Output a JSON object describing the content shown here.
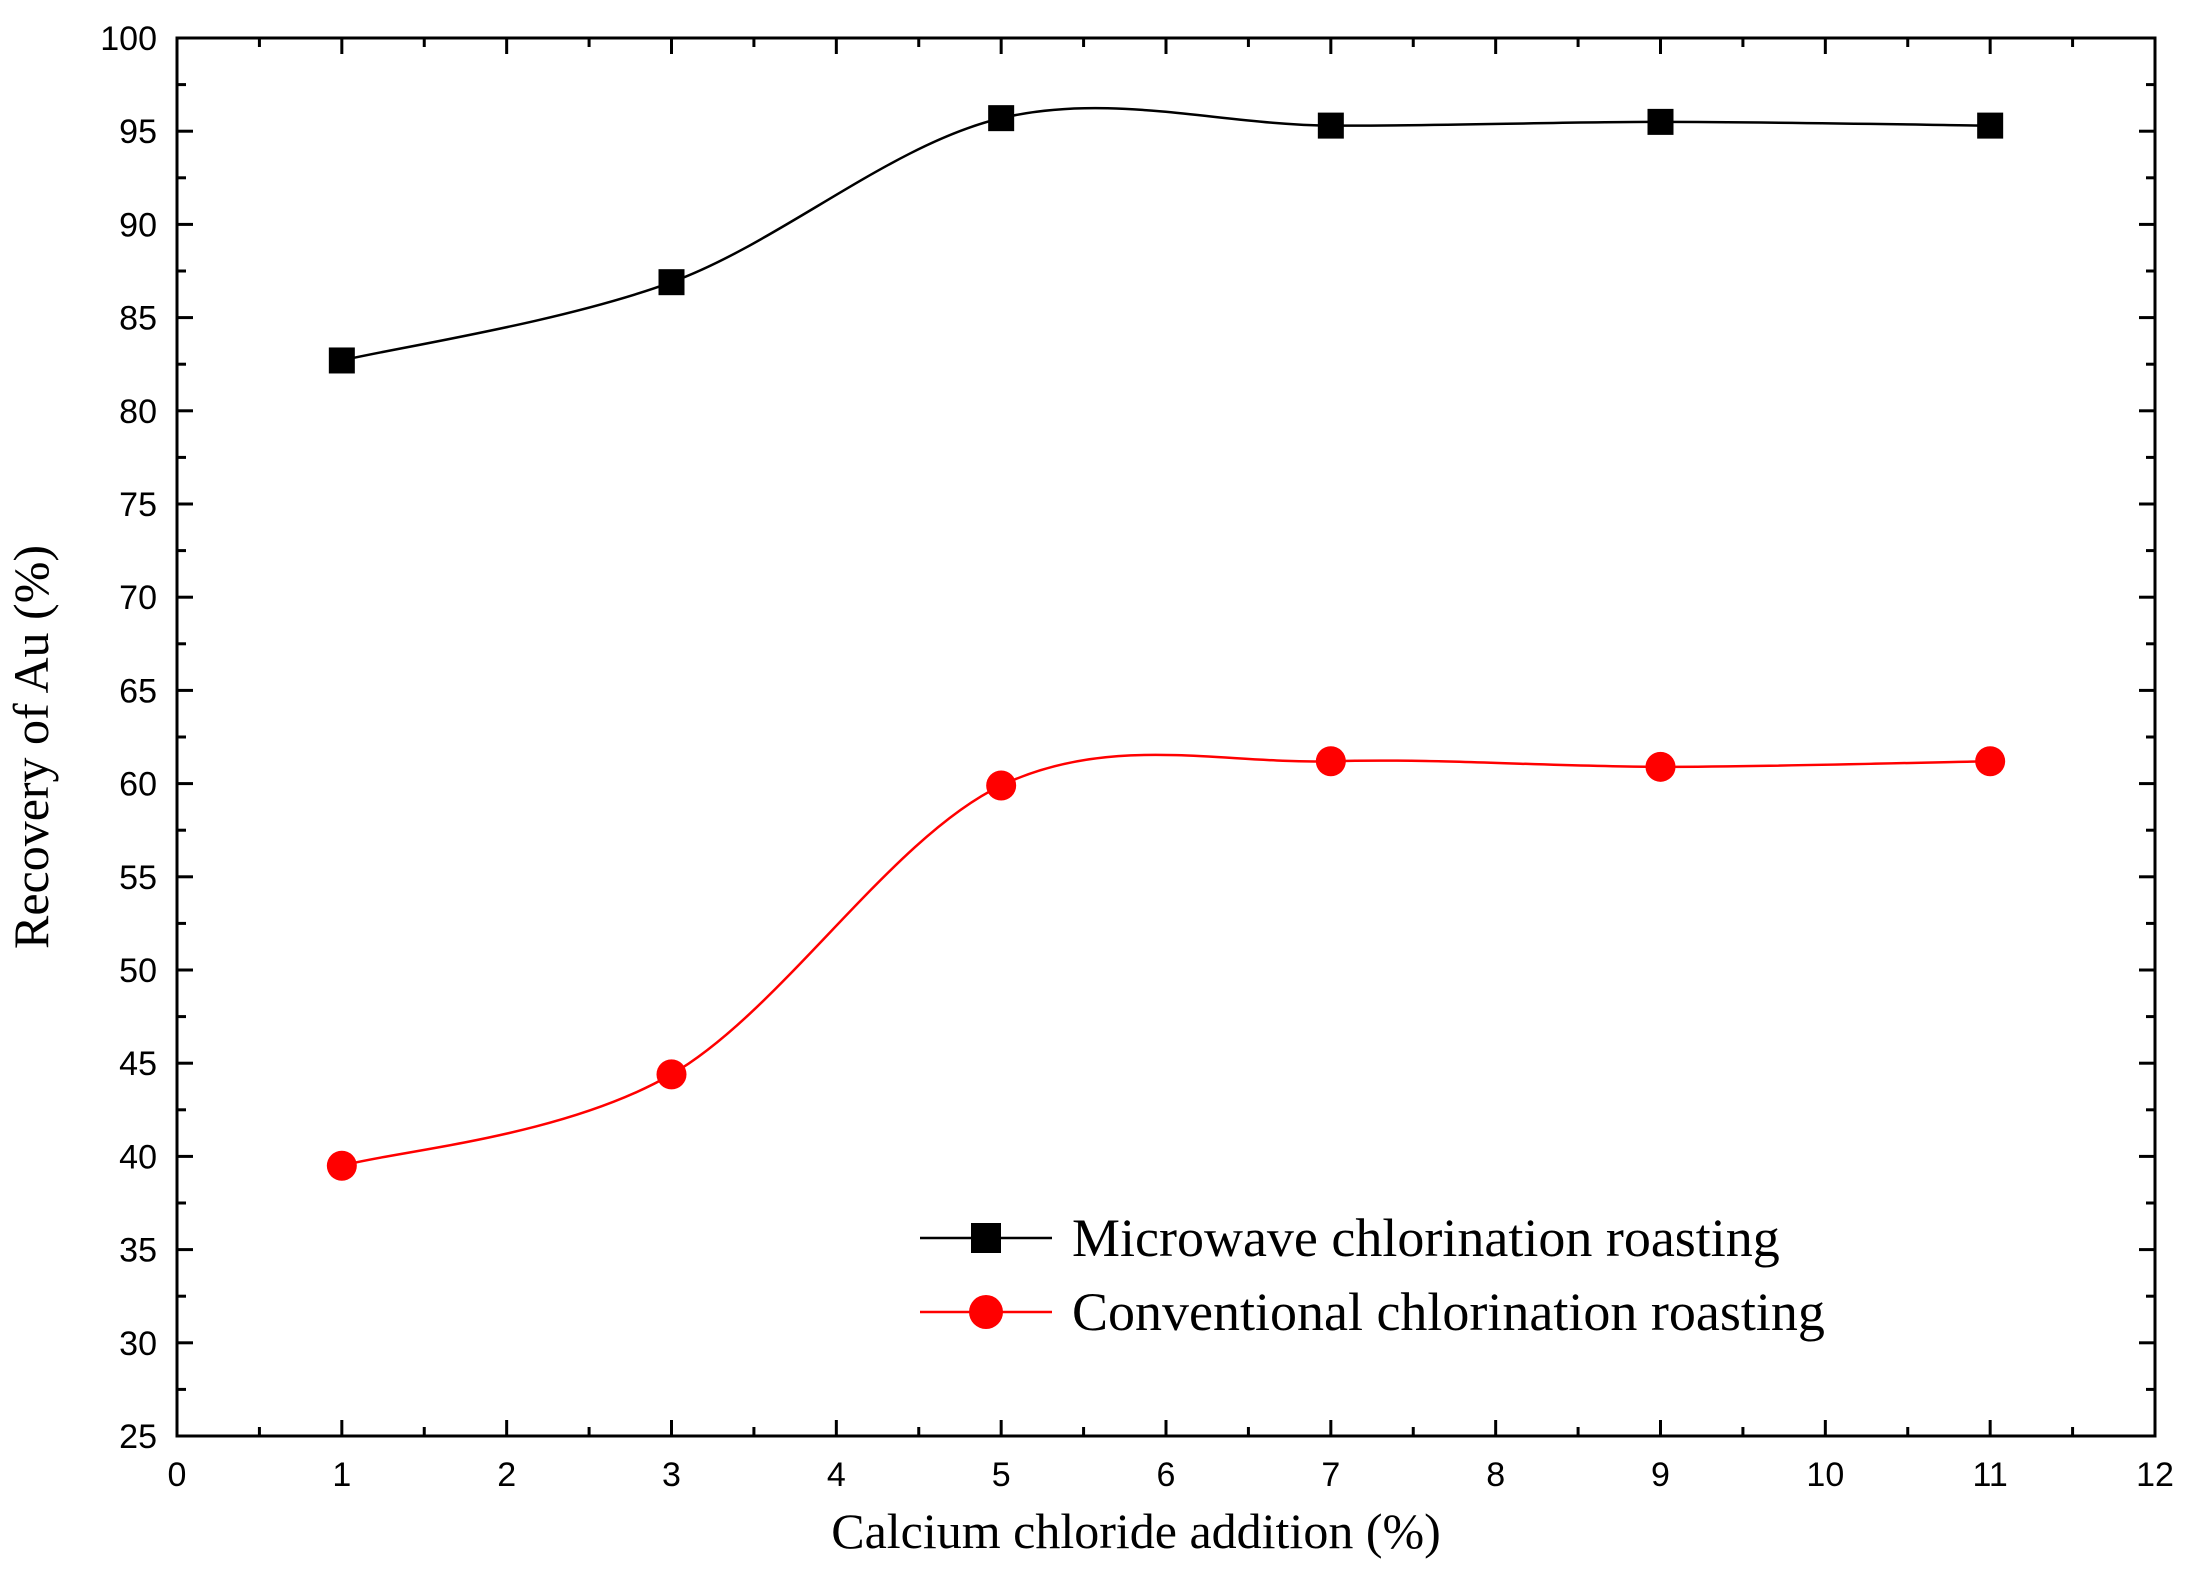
{
  "chart_data": {
    "type": "line",
    "title": "",
    "xlabel": "Calcium chloride addition (%)",
    "ylabel": "Recovery of Au (%)",
    "xlim": [
      0,
      12
    ],
    "ylim": [
      25,
      100
    ],
    "x_ticks": [
      0,
      1,
      2,
      3,
      4,
      5,
      6,
      7,
      8,
      9,
      10,
      11,
      12
    ],
    "y_ticks": [
      25,
      30,
      35,
      40,
      45,
      50,
      55,
      60,
      65,
      70,
      75,
      80,
      85,
      90,
      95,
      100
    ],
    "grid": false,
    "legend_position": "bottom-right",
    "x": [
      1,
      3,
      5,
      7,
      9,
      11
    ],
    "series": [
      {
        "name": "Microwave chlorination roasting",
        "marker": "square",
        "color": "#000000",
        "values": [
          82.7,
          86.9,
          95.7,
          95.3,
          95.5,
          95.3
        ]
      },
      {
        "name": "Conventional chlorination roasting",
        "marker": "circle",
        "color": "#ff0000",
        "values": [
          39.5,
          44.4,
          59.9,
          61.2,
          60.9,
          61.2
        ]
      }
    ]
  }
}
